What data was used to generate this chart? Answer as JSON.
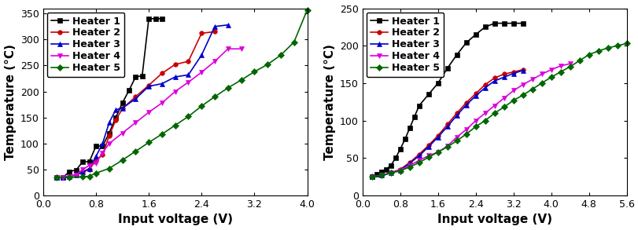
{
  "left_chart": {
    "xlabel": "Input voltage (V)",
    "ylabel": "Temperature (°C)",
    "xlim": [
      0.0,
      4.0
    ],
    "ylim": [
      0,
      360
    ],
    "xticks": [
      0.0,
      0.8,
      1.6,
      2.4,
      3.2,
      4.0
    ],
    "yticks": [
      0,
      50,
      100,
      150,
      200,
      250,
      300,
      350
    ],
    "series": [
      {
        "label": "Heater 1",
        "color": "#000000",
        "marker": "s",
        "x": [
          0.2,
          0.3,
          0.4,
          0.5,
          0.6,
          0.7,
          0.8,
          0.9,
          1.0,
          1.1,
          1.2,
          1.3,
          1.4,
          1.5,
          1.6,
          1.7,
          1.8
        ],
        "y": [
          35,
          35,
          46,
          49,
          65,
          65,
          95,
          95,
          120,
          150,
          178,
          202,
          228,
          230,
          340,
          340,
          340
        ]
      },
      {
        "label": "Heater 2",
        "color": "#cc0000",
        "marker": "o",
        "x": [
          0.2,
          0.3,
          0.4,
          0.5,
          0.6,
          0.7,
          0.8,
          0.9,
          1.0,
          1.1,
          1.2,
          1.4,
          1.6,
          1.8,
          2.0,
          2.2,
          2.4,
          2.6
        ],
        "y": [
          35,
          35,
          37,
          40,
          45,
          50,
          68,
          78,
          115,
          145,
          167,
          190,
          212,
          235,
          252,
          258,
          312,
          315
        ]
      },
      {
        "label": "Heater 3",
        "color": "#0000cc",
        "marker": "^",
        "x": [
          0.2,
          0.3,
          0.4,
          0.5,
          0.6,
          0.7,
          0.8,
          0.9,
          1.0,
          1.1,
          1.2,
          1.4,
          1.6,
          1.8,
          2.0,
          2.2,
          2.4,
          2.6,
          2.8
        ],
        "y": [
          35,
          35,
          37,
          40,
          45,
          52,
          75,
          100,
          140,
          165,
          168,
          186,
          210,
          215,
          228,
          232,
          270,
          325,
          328
        ]
      },
      {
        "label": "Heater 4",
        "color": "#dd00dd",
        "marker": "v",
        "x": [
          0.2,
          0.3,
          0.4,
          0.5,
          0.6,
          0.7,
          0.8,
          0.9,
          1.0,
          1.2,
          1.4,
          1.6,
          1.8,
          2.0,
          2.2,
          2.4,
          2.6,
          2.8,
          3.0
        ],
        "y": [
          35,
          35,
          37,
          40,
          50,
          58,
          62,
          82,
          100,
          120,
          140,
          160,
          178,
          200,
          218,
          237,
          258,
          282,
          282
        ]
      },
      {
        "label": "Heater 5",
        "color": "#006600",
        "marker": "D",
        "x": [
          0.2,
          0.4,
          0.6,
          0.7,
          0.8,
          1.0,
          1.2,
          1.4,
          1.6,
          1.8,
          2.0,
          2.2,
          2.4,
          2.6,
          2.8,
          3.0,
          3.2,
          3.4,
          3.6,
          3.8,
          4.0
        ],
        "y": [
          35,
          35,
          36,
          37,
          43,
          52,
          68,
          85,
          102,
          118,
          135,
          152,
          172,
          190,
          207,
          222,
          238,
          252,
          270,
          295,
          357
        ]
      }
    ]
  },
  "right_chart": {
    "xlabel": "Input voltage (V)",
    "ylabel": "Temperature (°C)",
    "xlim": [
      0.0,
      5.6
    ],
    "ylim": [
      0,
      250
    ],
    "xticks": [
      0.0,
      0.8,
      1.6,
      2.4,
      3.2,
      4.0,
      4.8,
      5.6
    ],
    "yticks": [
      0,
      50,
      100,
      150,
      200,
      250
    ],
    "series": [
      {
        "label": "Heater 1",
        "color": "#000000",
        "marker": "s",
        "x": [
          0.2,
          0.3,
          0.4,
          0.5,
          0.6,
          0.7,
          0.8,
          0.9,
          1.0,
          1.1,
          1.2,
          1.4,
          1.6,
          1.8,
          2.0,
          2.2,
          2.4,
          2.6,
          2.8,
          3.0,
          3.2,
          3.4
        ],
        "y": [
          25,
          28,
          32,
          35,
          40,
          50,
          62,
          75,
          90,
          105,
          120,
          135,
          150,
          170,
          188,
          204,
          215,
          225,
          230,
          230,
          230,
          230
        ]
      },
      {
        "label": "Heater 2",
        "color": "#cc0000",
        "marker": "o",
        "x": [
          0.2,
          0.4,
          0.6,
          0.8,
          1.0,
          1.2,
          1.4,
          1.6,
          1.8,
          2.0,
          2.2,
          2.4,
          2.6,
          2.8,
          3.0,
          3.2,
          3.4
        ],
        "y": [
          25,
          27,
          30,
          35,
          44,
          55,
          67,
          80,
          95,
          110,
          124,
          136,
          148,
          157,
          162,
          165,
          168
        ]
      },
      {
        "label": "Heater 3",
        "color": "#0000cc",
        "marker": "^",
        "x": [
          0.2,
          0.4,
          0.6,
          0.8,
          1.0,
          1.2,
          1.4,
          1.6,
          1.8,
          2.0,
          2.2,
          2.4,
          2.6,
          2.8,
          3.0,
          3.2,
          3.4
        ],
        "y": [
          25,
          27,
          30,
          34,
          43,
          53,
          65,
          78,
          92,
          107,
          121,
          133,
          144,
          153,
          158,
          163,
          167
        ]
      },
      {
        "label": "Heater 4",
        "color": "#dd00dd",
        "marker": "v",
        "x": [
          0.2,
          0.4,
          0.6,
          0.8,
          1.0,
          1.2,
          1.4,
          1.6,
          1.8,
          2.0,
          2.2,
          2.4,
          2.6,
          2.8,
          3.0,
          3.2,
          3.4,
          3.6,
          3.8,
          4.0,
          4.2,
          4.4
        ],
        "y": [
          25,
          27,
          30,
          34,
          40,
          47,
          53,
          58,
          66,
          78,
          88,
          100,
          110,
          120,
          130,
          140,
          148,
          155,
          162,
          168,
          173,
          176
        ]
      },
      {
        "label": "Heater 5",
        "color": "#006600",
        "marker": "D",
        "x": [
          0.2,
          0.4,
          0.6,
          0.8,
          1.0,
          1.2,
          1.4,
          1.6,
          1.8,
          2.0,
          2.2,
          2.4,
          2.6,
          2.8,
          3.0,
          3.2,
          3.4,
          3.6,
          3.8,
          4.0,
          4.2,
          4.4,
          4.6,
          4.8,
          5.0,
          5.2,
          5.4,
          5.6
        ],
        "y": [
          25,
          27,
          30,
          33,
          38,
          44,
          51,
          58,
          65,
          73,
          82,
          92,
          100,
          110,
          118,
          127,
          134,
          142,
          150,
          158,
          165,
          172,
          180,
          188,
          193,
          197,
          200,
          203
        ]
      }
    ]
  },
  "label_fontsize": 11,
  "tick_fontsize": 9,
  "legend_fontsize": 9,
  "marker_size": 4,
  "linewidth": 1.2
}
